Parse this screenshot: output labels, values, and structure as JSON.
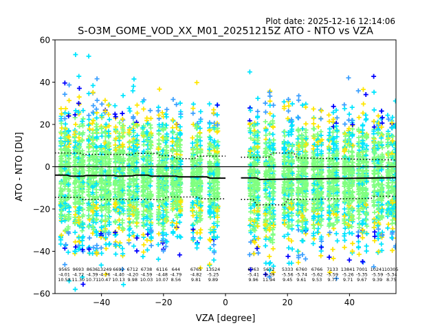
{
  "plot_date": "Plot date: 2025-12-16 12:14:06",
  "title": "S-O3M_GOME_VOD_XX_M01_20251215Z ATO - NTO vs VZA",
  "chart_data": {
    "type": "scatter",
    "title": "S-O3M_GOME_VOD_XX_M01_20251215Z ATO - NTO vs VZA",
    "xlabel": "VZA [degree]",
    "ylabel": "ATO - NTO [DU]",
    "xlim": [
      -55,
      55
    ],
    "ylim": [
      -60,
      60
    ],
    "xticks": [
      -40,
      -20,
      0,
      20,
      40
    ],
    "yticks": [
      -60,
      -40,
      -20,
      0,
      20,
      40,
      60
    ],
    "zero_line": 0,
    "colors": {
      "points": [
        "#80ff80",
        "#00e5ff",
        "#ffe600",
        "#3ca0ff",
        "#0000ff"
      ],
      "median": "#000000"
    },
    "bins": [
      {
        "x": -52.0,
        "count": "9565",
        "mean": "-4.01",
        "sd": "10.58"
      },
      {
        "x": -47.5,
        "count": "9693",
        "mean": "-4.72",
        "sd": "11.30"
      },
      {
        "x": -43.0,
        "count": "8636",
        "mean": "-4.39",
        "sd": "10.71"
      },
      {
        "x": -39.0,
        "count": "13249",
        "mean": "-4.76",
        "sd": "10.47"
      },
      {
        "x": -34.5,
        "count": "6692",
        "mean": "-4.40",
        "sd": "10.13"
      },
      {
        "x": -30.0,
        "count": "6712",
        "mean": "-4.20",
        "sd": "9.98"
      },
      {
        "x": -25.5,
        "count": "6738",
        "mean": "-4.59",
        "sd": "10.03"
      },
      {
        "x": -20.5,
        "count": "6116",
        "mean": "-4.48",
        "sd": "10.07"
      },
      {
        "x": -16.0,
        "count": "644",
        "mean": "-4.79",
        "sd": "8.56"
      },
      {
        "x": -9.5,
        "count": "6765",
        "mean": "-4.82",
        "sd": "9.81"
      },
      {
        "x": -4.0,
        "count": "13524",
        "mean": "-5.25",
        "sd": "9.89"
      },
      {
        "x": 9.0,
        "count": "6763",
        "mean": "-5.41",
        "sd": "9.96"
      },
      {
        "x": 14.0,
        "count": "5672",
        "mean": "-6.39",
        "sd": "11.94"
      },
      {
        "x": 20.0,
        "count": "5333",
        "mean": "-5.56",
        "sd": "9.45"
      },
      {
        "x": 24.5,
        "count": "6760",
        "mean": "-5.74",
        "sd": "9.61"
      },
      {
        "x": 29.5,
        "count": "6766",
        "mean": "-5.62",
        "sd": "9.53"
      },
      {
        "x": 34.5,
        "count": "7133",
        "mean": "-5.59",
        "sd": "9.77"
      },
      {
        "x": 39.5,
        "count": "13841",
        "mean": "-5.26",
        "sd": "9.71"
      },
      {
        "x": 44.0,
        "count": "7001",
        "mean": "-5.35",
        "sd": "9.67"
      },
      {
        "x": 49.0,
        "count": "10241",
        "mean": "-5.59",
        "sd": "9.39"
      },
      {
        "x": 53.5,
        "count": "10305",
        "mean": "-5.34",
        "sd": "8.75"
      }
    ],
    "median_line": [
      {
        "x": -55,
        "y": -4.0
      },
      {
        "x": -51,
        "y": -4.0
      },
      {
        "x": -50,
        "y": -4.5
      },
      {
        "x": -46,
        "y": -4.5
      },
      {
        "x": -45,
        "y": -4.2
      },
      {
        "x": -36,
        "y": -4.2
      },
      {
        "x": -35,
        "y": -4.5
      },
      {
        "x": -30,
        "y": -4.3
      },
      {
        "x": -29,
        "y": -4.0
      },
      {
        "x": -25,
        "y": -4.0
      },
      {
        "x": -24,
        "y": -4.5
      },
      {
        "x": -16,
        "y": -4.5
      },
      {
        "x": -15,
        "y": -4.8
      },
      {
        "x": -6,
        "y": -4.8
      },
      {
        "x": -5,
        "y": -5.4
      },
      {
        "x": 0,
        "y": -5.4
      },
      {
        "x": null,
        "y": null
      },
      {
        "x": 5,
        "y": -5.3
      },
      {
        "x": 10,
        "y": -5.3
      },
      {
        "x": 11,
        "y": -6.0
      },
      {
        "x": 55,
        "y": -5.2
      }
    ],
    "upper_sd_line": [
      {
        "x": -55,
        "y": 6.5
      },
      {
        "x": -47,
        "y": 6.5
      },
      {
        "x": -46,
        "y": 5.8
      },
      {
        "x": -30,
        "y": 5.8
      },
      {
        "x": -29,
        "y": 6.3
      },
      {
        "x": -22,
        "y": 6.3
      },
      {
        "x": -21,
        "y": 5.2
      },
      {
        "x": -17,
        "y": 5.2
      },
      {
        "x": -16,
        "y": 3.8
      },
      {
        "x": -10,
        "y": 3.8
      },
      {
        "x": -9,
        "y": 5.0
      },
      {
        "x": 0,
        "y": 5.0
      },
      {
        "x": null,
        "y": null
      },
      {
        "x": 5,
        "y": 4.5
      },
      {
        "x": 14,
        "y": 4.5
      },
      {
        "x": 15,
        "y": 6.5
      },
      {
        "x": 22,
        "y": 6.5
      },
      {
        "x": 23,
        "y": 4.2
      },
      {
        "x": 55,
        "y": 3.2
      }
    ],
    "lower_sd_line": [
      {
        "x": -55,
        "y": -14.5
      },
      {
        "x": -47,
        "y": -14.5
      },
      {
        "x": -46,
        "y": -15.5
      },
      {
        "x": -20,
        "y": -15.5
      },
      {
        "x": -19,
        "y": -14.3
      },
      {
        "x": -9,
        "y": -14.3
      },
      {
        "x": -8,
        "y": -15.2
      },
      {
        "x": 0,
        "y": -15.2
      },
      {
        "x": null,
        "y": null
      },
      {
        "x": 5,
        "y": -15.5
      },
      {
        "x": 9,
        "y": -15.5
      },
      {
        "x": 10,
        "y": -18.0
      },
      {
        "x": 19,
        "y": -18.0
      },
      {
        "x": 20,
        "y": -15.5
      },
      {
        "x": 47,
        "y": -15.0
      },
      {
        "x": 48,
        "y": -14.0
      },
      {
        "x": 55,
        "y": -14.0
      }
    ]
  }
}
